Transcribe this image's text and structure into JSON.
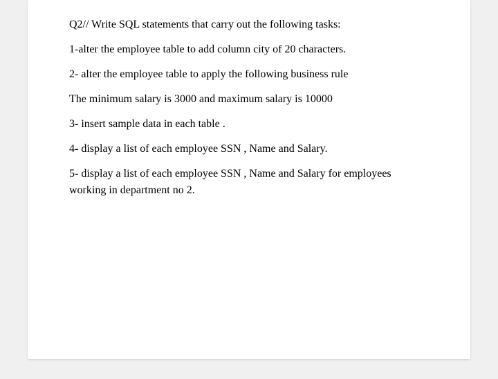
{
  "document": {
    "background_color": "#f0f0f0",
    "page_background": "#ffffff",
    "text_color": "#000000",
    "font_family": "Times New Roman",
    "font_size_pt": 12,
    "lines": [
      "Q2// Write SQL statements that carry out the following tasks:",
      "1-alter the employee table to add column city of 20 characters.",
      "2- alter the employee table to apply the following business rule",
      "The minimum salary is 3000 and maximum salary is 10000",
      "3- insert sample data in each table .",
      "4- display a list of each employee SSN , Name and Salary.",
      "5- display a list of each employee SSN , Name and Salary for employees working in department no 2."
    ]
  }
}
